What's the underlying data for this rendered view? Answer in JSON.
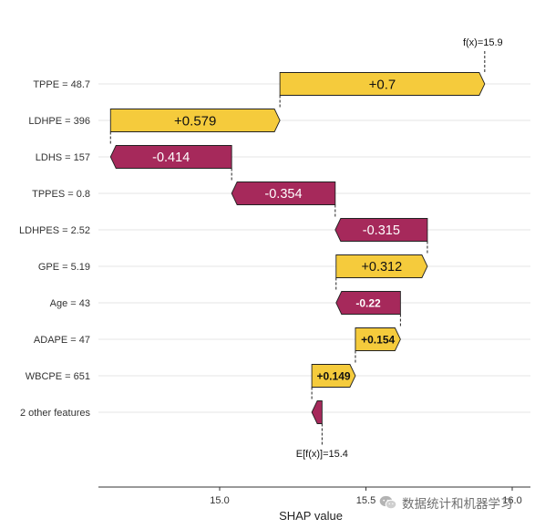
{
  "chart_data": {
    "type": "waterfall",
    "xlabel": "SHAP value",
    "x_ticks": [
      15.0,
      15.5,
      16.0
    ],
    "x_tick_labels": [
      "15.0",
      "15.5",
      "16.0"
    ],
    "xlim": [
      14.6,
      16.05
    ],
    "base_value": 15.35,
    "base_label": "E[f(x)]=15.4",
    "final_value": 15.905,
    "final_label": "f(x)=15.9",
    "features": [
      {
        "label": "TPPE = 48.7",
        "value": 0.7,
        "text": "+0.7"
      },
      {
        "label": "LDHPE = 396",
        "value": 0.579,
        "text": "+0.579"
      },
      {
        "label": "LDHS = 157",
        "value": -0.414,
        "text": "-0.414"
      },
      {
        "label": "TPPES = 0.8",
        "value": -0.354,
        "text": "-0.354"
      },
      {
        "label": "LDHPES = 2.52",
        "value": -0.315,
        "text": "-0.315"
      },
      {
        "label": "GPE = 5.19",
        "value": 0.312,
        "text": "+0.312"
      },
      {
        "label": "Age = 43",
        "value": -0.22,
        "text": "-0.22"
      },
      {
        "label": "ADAPE = 47",
        "value": 0.154,
        "text": "+0.154"
      },
      {
        "label": "WBCPE = 651",
        "value": 0.149,
        "text": "+0.149"
      },
      {
        "label": "2 other features",
        "value": -0.035,
        "text": ""
      }
    ],
    "colors": {
      "positive": "#f5cb3c",
      "negative": "#a6295b",
      "grid": "#e6e6e6",
      "axis": "#333333"
    }
  },
  "watermark": {
    "text": "数据统计和机器学习",
    "icon": "wechat-icon"
  }
}
